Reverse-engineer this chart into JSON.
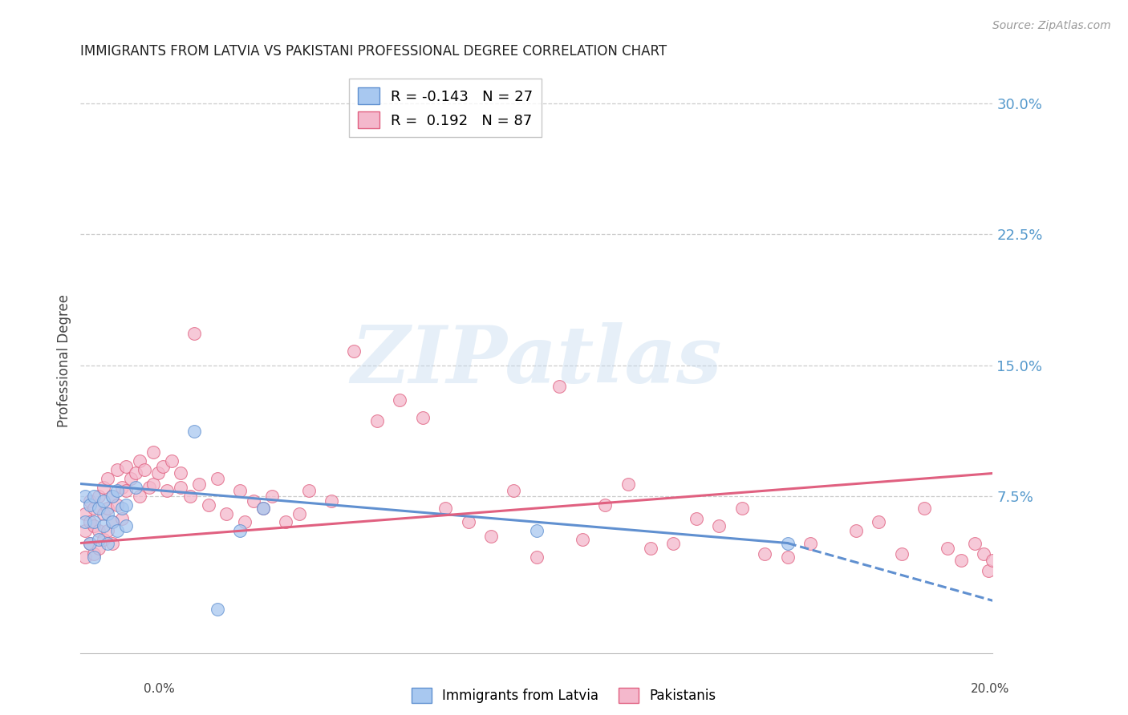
{
  "title": "IMMIGRANTS FROM LATVIA VS PAKISTANI PROFESSIONAL DEGREE CORRELATION CHART",
  "source": "Source: ZipAtlas.com",
  "ylabel": "Professional Degree",
  "right_yticks": [
    "30.0%",
    "22.5%",
    "15.0%",
    "7.5%"
  ],
  "right_ytick_vals": [
    0.3,
    0.225,
    0.15,
    0.075
  ],
  "xlim": [
    0.0,
    0.2
  ],
  "ylim": [
    -0.015,
    0.32
  ],
  "legend_entry1": "R = -0.143   N = 27",
  "legend_entry2": "R =  0.192   N = 87",
  "legend_label1": "Immigrants from Latvia",
  "legend_label2": "Pakistanis",
  "color_latvia": "#a8c8f0",
  "color_pakistan": "#f4b8cc",
  "color_latvia_line": "#6090d0",
  "color_pakistan_line": "#e06080",
  "color_right_axis": "#5599cc",
  "background_color": "#ffffff",
  "watermark_text": "ZIPatlas",
  "latvia_x": [
    0.001,
    0.001,
    0.002,
    0.002,
    0.003,
    0.003,
    0.003,
    0.004,
    0.004,
    0.005,
    0.005,
    0.006,
    0.006,
    0.007,
    0.007,
    0.008,
    0.008,
    0.009,
    0.01,
    0.01,
    0.012,
    0.025,
    0.03,
    0.035,
    0.04,
    0.1,
    0.155
  ],
  "latvia_y": [
    0.075,
    0.06,
    0.07,
    0.048,
    0.075,
    0.06,
    0.04,
    0.068,
    0.05,
    0.072,
    0.058,
    0.065,
    0.048,
    0.075,
    0.06,
    0.078,
    0.055,
    0.068,
    0.058,
    0.07,
    0.08,
    0.112,
    0.01,
    0.055,
    0.068,
    0.055,
    0.048
  ],
  "pakistan_x": [
    0.001,
    0.001,
    0.001,
    0.002,
    0.002,
    0.002,
    0.003,
    0.003,
    0.003,
    0.004,
    0.004,
    0.004,
    0.005,
    0.005,
    0.005,
    0.006,
    0.006,
    0.006,
    0.007,
    0.007,
    0.007,
    0.008,
    0.008,
    0.009,
    0.009,
    0.01,
    0.01,
    0.011,
    0.012,
    0.013,
    0.013,
    0.014,
    0.015,
    0.016,
    0.016,
    0.017,
    0.018,
    0.019,
    0.02,
    0.022,
    0.022,
    0.024,
    0.025,
    0.026,
    0.028,
    0.03,
    0.032,
    0.035,
    0.036,
    0.038,
    0.04,
    0.042,
    0.045,
    0.048,
    0.05,
    0.055,
    0.06,
    0.065,
    0.07,
    0.075,
    0.08,
    0.085,
    0.09,
    0.095,
    0.1,
    0.105,
    0.11,
    0.115,
    0.12,
    0.125,
    0.13,
    0.135,
    0.14,
    0.145,
    0.15,
    0.155,
    0.16,
    0.17,
    0.175,
    0.18,
    0.185,
    0.19,
    0.193,
    0.196,
    0.198,
    0.199,
    0.2
  ],
  "pakistan_y": [
    0.04,
    0.055,
    0.065,
    0.048,
    0.06,
    0.072,
    0.058,
    0.068,
    0.042,
    0.075,
    0.055,
    0.045,
    0.08,
    0.065,
    0.05,
    0.085,
    0.068,
    0.055,
    0.075,
    0.06,
    0.048,
    0.09,
    0.07,
    0.08,
    0.062,
    0.092,
    0.078,
    0.085,
    0.088,
    0.095,
    0.075,
    0.09,
    0.08,
    0.1,
    0.082,
    0.088,
    0.092,
    0.078,
    0.095,
    0.08,
    0.088,
    0.075,
    0.168,
    0.082,
    0.07,
    0.085,
    0.065,
    0.078,
    0.06,
    0.072,
    0.068,
    0.075,
    0.06,
    0.065,
    0.078,
    0.072,
    0.158,
    0.118,
    0.13,
    0.12,
    0.068,
    0.06,
    0.052,
    0.078,
    0.04,
    0.138,
    0.05,
    0.07,
    0.082,
    0.045,
    0.048,
    0.062,
    0.058,
    0.068,
    0.042,
    0.04,
    0.048,
    0.055,
    0.06,
    0.042,
    0.068,
    0.045,
    0.038,
    0.048,
    0.042,
    0.032,
    0.038
  ],
  "grid_color": "#cccccc",
  "grid_linestyle": "--",
  "latvia_line_x_start": 0.0,
  "latvia_line_x_solid_end": 0.155,
  "latvia_line_x_dash_end": 0.2,
  "latvia_line_y_start": 0.082,
  "latvia_line_y_solid_end": 0.048,
  "latvia_line_y_dash_end": 0.015,
  "pakistan_line_x_start": 0.0,
  "pakistan_line_x_end": 0.2,
  "pakistan_line_y_start": 0.048,
  "pakistan_line_y_end": 0.088
}
